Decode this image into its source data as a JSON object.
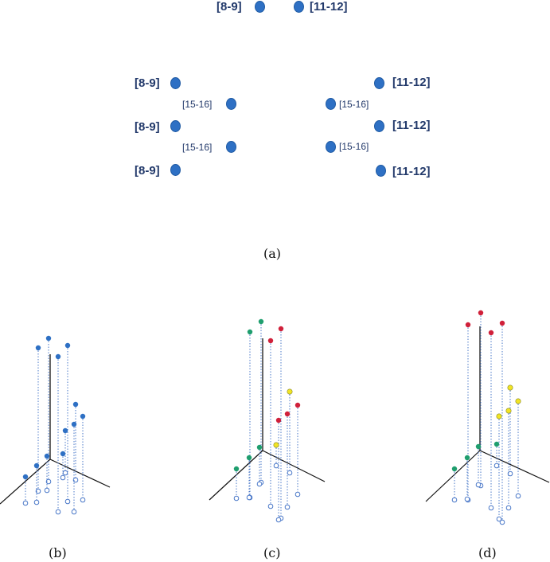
{
  "panel_a": {
    "top_left_label": "[8-9]",
    "top_right_label": "[11-12]",
    "left_label_1": "[8-9]",
    "left_label_2": "[8-9]",
    "left_label_3": "[8-9]",
    "left_mid_label_1": "[15-16]",
    "left_mid_label_2": "[15-16]",
    "right_label_1": "[11-12]",
    "right_label_2": "[11-12]",
    "right_label_3": "[11-12]",
    "right_mid_label_1": "[15-16]",
    "right_mid_label_2": "[15-16]"
  },
  "captions": {
    "a": "(a)",
    "b": "(b)",
    "c": "(c)",
    "d": "(d)"
  },
  "colors": {
    "node_blue": "#2e70c4",
    "label_navy": "#233a6b",
    "green": "#1f9e6e",
    "red": "#d0203a",
    "yellow": "#f1e424",
    "projection": "#4a78c8"
  }
}
